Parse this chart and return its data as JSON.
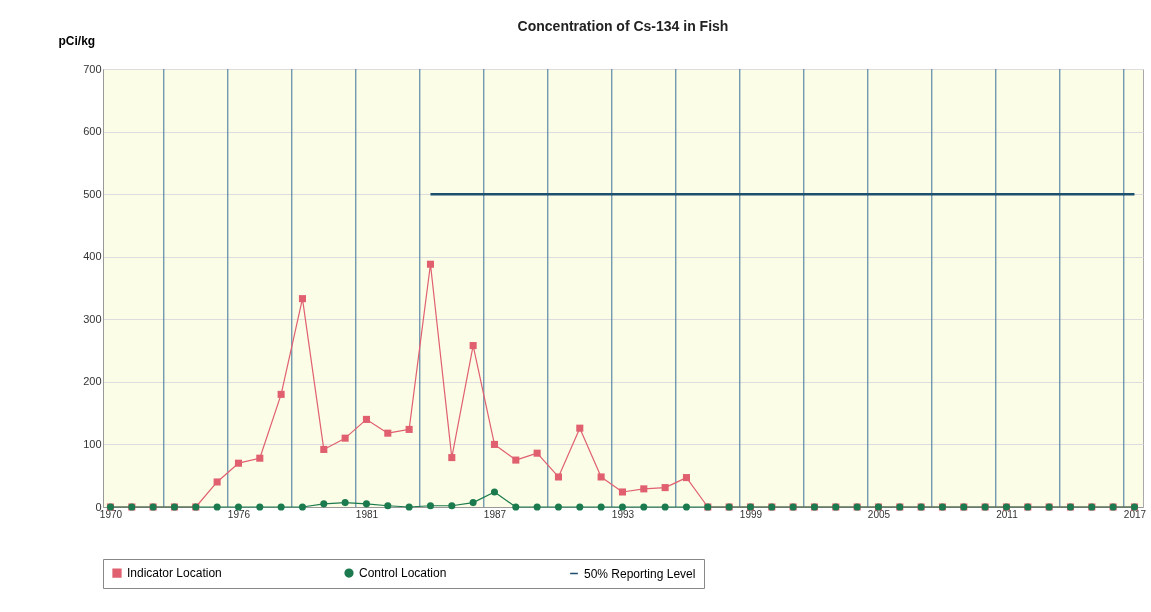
{
  "chart_data": {
    "type": "line",
    "title": "Concentration of Cs-134 in Fish",
    "ylabel": "pCi/kg",
    "categories": [
      "1970",
      null,
      null,
      null,
      null,
      null,
      "1976",
      null,
      null,
      null,
      null,
      null,
      "1981",
      null,
      null,
      null,
      null,
      null,
      "1987",
      null,
      null,
      null,
      null,
      null,
      "1993",
      null,
      null,
      null,
      null,
      null,
      "1999",
      null,
      null,
      null,
      null,
      null,
      "2005",
      null,
      null,
      null,
      null,
      null,
      "2011",
      null,
      null,
      null,
      null,
      null,
      "2017"
    ],
    "series": [
      {
        "name": "Indicator Location",
        "color": "#e06070",
        "marker": "square",
        "values": [
          0,
          0,
          0,
          0,
          0,
          40,
          70,
          78,
          180,
          333,
          92,
          110,
          140,
          118,
          124,
          388,
          79,
          258,
          100,
          75,
          86,
          48,
          126,
          48,
          24,
          29,
          31,
          47,
          0,
          0,
          0,
          0,
          0,
          0,
          0,
          0,
          0,
          0,
          0,
          0,
          0,
          0,
          0,
          0,
          0,
          0,
          0,
          0,
          0
        ]
      },
      {
        "name": "Control Location",
        "color": "#1b7a4e",
        "marker": "circle",
        "values": [
          0,
          0,
          0,
          0,
          0,
          0,
          0,
          0,
          0,
          0,
          5,
          7,
          5,
          2,
          0,
          2,
          2,
          7,
          24,
          0,
          0,
          0,
          0,
          0,
          0,
          0,
          0,
          0,
          0,
          0,
          0,
          0,
          0,
          0,
          0,
          0,
          0,
          0,
          0,
          0,
          0,
          0,
          0,
          0,
          0,
          0,
          0,
          0,
          0
        ]
      },
      {
        "name": "50% Reporting Level",
        "color": "#1d4f6e",
        "marker": "none",
        "values": [
          null,
          null,
          null,
          null,
          null,
          null,
          null,
          null,
          null,
          null,
          null,
          null,
          null,
          null,
          null,
          500,
          500,
          500,
          500,
          500,
          500,
          500,
          500,
          500,
          500,
          500,
          500,
          500,
          500,
          500,
          500,
          500,
          500,
          500,
          500,
          500,
          500,
          500,
          500,
          500,
          500,
          500,
          500,
          500,
          500,
          500,
          500,
          500,
          500
        ]
      }
    ],
    "ylim": [
      0,
      700
    ],
    "yticks": [
      0,
      100,
      200,
      300,
      400,
      500,
      600,
      700
    ],
    "grid": true,
    "legend": "bottom"
  }
}
